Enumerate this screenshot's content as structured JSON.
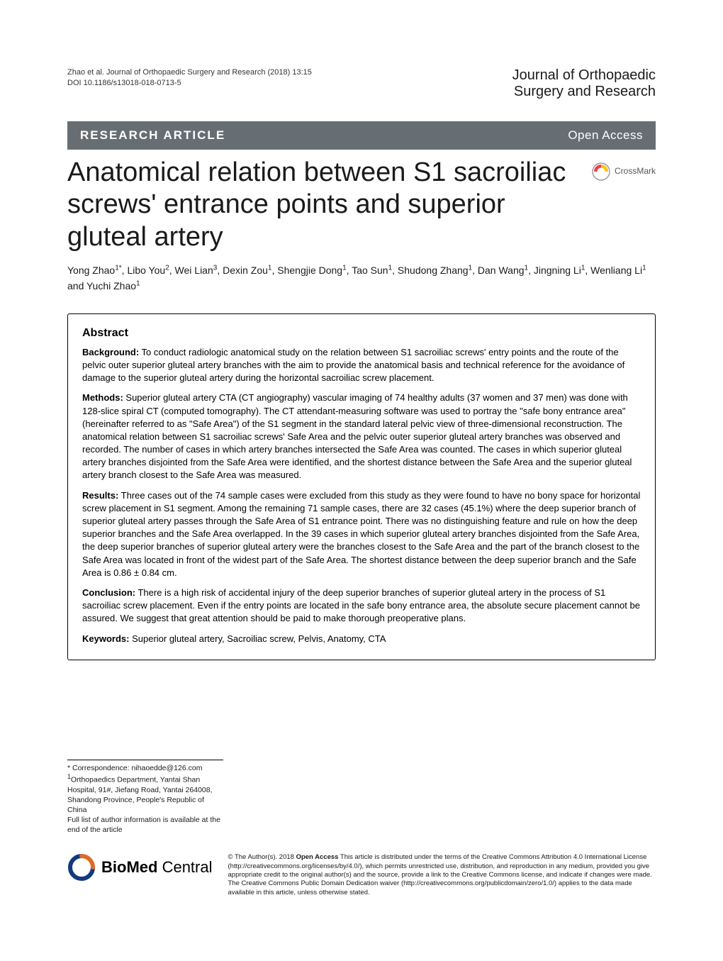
{
  "header": {
    "citation": "Zhao et al. Journal of Orthopaedic Surgery and Research  (2018) 13:15",
    "doi": "DOI 10.1186/s13018-018-0713-5",
    "journal_line1": "Journal of Orthopaedic",
    "journal_line2": "Surgery and Research"
  },
  "banner": {
    "left": "RESEARCH ARTICLE",
    "right": "Open Access"
  },
  "title": "Anatomical relation between S1 sacroiliac screws' entrance points and superior gluteal artery",
  "crossmark_label": "CrossMark",
  "authors_html": "Yong Zhao<sup>1*</sup>, Libo You<sup>2</sup>, Wei Lian<sup>3</sup>, Dexin Zou<sup>1</sup>, Shengjie Dong<sup>1</sup>, Tao Sun<sup>1</sup>, Shudong Zhang<sup>1</sup>, Dan Wang<sup>1</sup>, Jingning Li<sup>1</sup>, Wenliang Li<sup>1</sup> and Yuchi Zhao<sup>1</sup>",
  "abstract": {
    "heading": "Abstract",
    "background_label": "Background:",
    "background": " To conduct radiologic anatomical study on the relation between S1 sacroiliac screws' entry points and the route of the pelvic outer superior gluteal artery branches with the aim to provide the anatomical basis and technical reference for the avoidance of damage to the superior gluteal artery during the horizontal sacroiliac screw placement.",
    "methods_label": "Methods:",
    "methods": " Superior gluteal artery CTA (CT angiography) vascular imaging of 74 healthy adults (37 women and 37 men) was done with 128-slice spiral CT (computed tomography). The CT attendant-measuring software was used to portray the \"safe bony entrance area\" (hereinafter referred to as \"Safe Area\") of the S1 segment in the standard lateral pelvic view of three-dimensional reconstruction. The anatomical relation between S1 sacroiliac screws' Safe Area and the pelvic outer superior gluteal artery branches was observed and recorded. The number of cases in which artery branches intersected the Safe Area was counted. The cases in which superior gluteal artery branches disjointed from the Safe Area were identified, and the shortest distance between the Safe Area and the superior gluteal artery branch closest to the Safe Area was measured.",
    "results_label": "Results:",
    "results": " Three cases out of the 74 sample cases were excluded from this study as they were found to have no bony space for horizontal screw placement in S1 segment. Among the remaining 71 sample cases, there are 32 cases (45.1%) where the deep superior branch of superior gluteal artery passes through the Safe Area of S1 entrance point. There was no distinguishing feature and rule on how the deep superior branches and the Safe Area overlapped. In the 39 cases in which superior gluteal artery branches disjointed from the Safe Area, the deep superior branches of superior gluteal artery were the branches closest to the Safe Area and the part of the branch closest to the Safe Area was located in front of the widest part of the Safe Area. The shortest distance between the deep superior branch and the Safe Area is 0.86 ± 0.84 cm.",
    "conclusion_label": "Conclusion:",
    "conclusion": " There is a high risk of accidental injury of the deep superior branches of superior gluteal artery in the process of S1 sacroiliac screw placement. Even if the entry points are located in the safe bony entrance area, the absolute secure placement cannot be assured. We suggest that great attention should be paid to make thorough preoperative plans.",
    "keywords_label": "Keywords:",
    "keywords": " Superior gluteal artery, Sacroiliac screw, Pelvis, Anatomy, CTA"
  },
  "footer": {
    "correspondence": "* Correspondence: nihaoedde@126.com",
    "affiliation": "Orthopaedics Department, Yantai Shan Hospital, 91#, Jiefang Road, Yantai 264008, Shandong Province, People's Republic of China",
    "fulllist": "Full list of author information is available at the end of the article"
  },
  "license": {
    "logo_bio": "Bio",
    "logo_med": "Med",
    "logo_central": " Central",
    "text_prefix": "© The Author(s). 2018 ",
    "open_access": "Open Access",
    "text_body": " This article is distributed under the terms of the Creative Commons Attribution 4.0 International License (http://creativecommons.org/licenses/by/4.0/), which permits unrestricted use, distribution, and reproduction in any medium, provided you give appropriate credit to the original author(s) and the source, provide a link to the Creative Commons license, and indicate if changes were made. The Creative Commons Public Domain Dedication waiver (http://creativecommons.org/publicdomain/zero/1.0/) applies to the data made available in this article, unless otherwise stated."
  },
  "colors": {
    "banner_bg": "#676e73",
    "banner_text": "#ffffff",
    "text": "#000000",
    "crossmark_yellow": "#ffc20e",
    "crossmark_red": "#ef3e42",
    "bmc_blue": "#13397e",
    "bmc_orange": "#e06b29"
  },
  "typography": {
    "title_fontsize": 38,
    "body_fontsize": 13,
    "banner_fontsize": 17,
    "authors_fontsize": 14
  }
}
